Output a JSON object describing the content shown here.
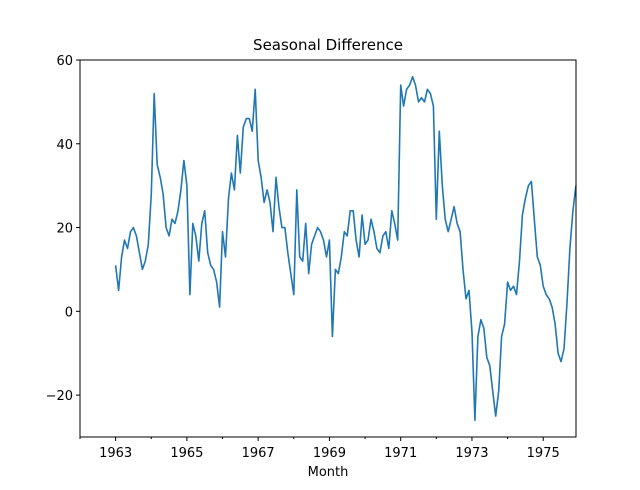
{
  "chart_data": {
    "type": "line",
    "title": "Seasonal Difference",
    "xlabel": "Month",
    "ylabel": "",
    "xlim": [
      1962.0,
      1975.92
    ],
    "ylim": [
      -30,
      60
    ],
    "grid": false,
    "legend": "none",
    "yticks": [
      -20,
      0,
      20,
      40,
      60
    ],
    "xticks": [
      1963,
      1965,
      1967,
      1969,
      1971,
      1973,
      1975
    ],
    "ytick_labels": [
      "−20",
      "0",
      "20",
      "40",
      "60"
    ],
    "xtick_labels": [
      "1963",
      "1965",
      "1967",
      "1969",
      "1971",
      "1973",
      "1975"
    ],
    "series": [
      {
        "color": "#1f77b4",
        "x": [
          1963.0,
          1963.083,
          1963.167,
          1963.25,
          1963.333,
          1963.417,
          1963.5,
          1963.583,
          1963.667,
          1963.75,
          1963.833,
          1963.917,
          1964.0,
          1964.083,
          1964.167,
          1964.25,
          1964.333,
          1964.417,
          1964.5,
          1964.583,
          1964.667,
          1964.75,
          1964.833,
          1964.917,
          1965.0,
          1965.083,
          1965.167,
          1965.25,
          1965.333,
          1965.417,
          1965.5,
          1965.583,
          1965.667,
          1965.75,
          1965.833,
          1965.917,
          1966.0,
          1966.083,
          1966.167,
          1966.25,
          1966.333,
          1966.417,
          1966.5,
          1966.583,
          1966.667,
          1966.75,
          1966.833,
          1966.917,
          1967.0,
          1967.083,
          1967.167,
          1967.25,
          1967.333,
          1967.417,
          1967.5,
          1967.583,
          1967.667,
          1967.75,
          1967.833,
          1967.917,
          1968.0,
          1968.083,
          1968.167,
          1968.25,
          1968.333,
          1968.417,
          1968.5,
          1968.583,
          1968.667,
          1968.75,
          1968.833,
          1968.917,
          1969.0,
          1969.083,
          1969.167,
          1969.25,
          1969.333,
          1969.417,
          1969.5,
          1969.583,
          1969.667,
          1969.75,
          1969.833,
          1969.917,
          1970.0,
          1970.083,
          1970.167,
          1970.25,
          1970.333,
          1970.417,
          1970.5,
          1970.583,
          1970.667,
          1970.75,
          1970.833,
          1970.917,
          1971.0,
          1971.083,
          1971.167,
          1971.25,
          1971.333,
          1971.417,
          1971.5,
          1971.583,
          1971.667,
          1971.75,
          1971.833,
          1971.917,
          1972.0,
          1972.083,
          1972.167,
          1972.25,
          1972.333,
          1972.417,
          1972.5,
          1972.583,
          1972.667,
          1972.75,
          1972.833,
          1972.917,
          1973.0,
          1973.083,
          1973.167,
          1973.25,
          1973.333,
          1973.417,
          1973.5,
          1973.583,
          1973.667,
          1973.75,
          1973.833,
          1973.917,
          1974.0,
          1974.083,
          1974.167,
          1974.25,
          1974.333,
          1974.417,
          1974.5,
          1974.583,
          1974.667,
          1974.75,
          1974.833,
          1974.917,
          1975.0,
          1975.083,
          1975.167,
          1975.25,
          1975.333,
          1975.417,
          1975.5,
          1975.583,
          1975.667,
          1975.75,
          1975.833,
          1975.917
        ],
        "y": [
          11,
          5,
          13,
          17,
          15,
          19,
          20,
          18,
          14,
          10,
          12,
          16,
          28,
          52,
          35,
          32,
          28,
          20,
          18,
          22,
          21,
          24,
          29,
          36,
          30,
          4,
          21,
          18,
          12,
          21,
          24,
          14,
          11,
          10,
          7,
          1,
          19,
          13,
          27,
          33,
          29,
          42,
          33,
          44,
          46,
          46,
          43,
          53,
          36,
          32,
          26,
          29,
          26,
          19,
          32,
          25,
          20,
          20,
          14,
          9,
          4,
          29,
          13,
          12,
          21,
          9,
          16,
          18,
          20,
          19,
          17,
          13,
          17,
          -6,
          10,
          9,
          13,
          19,
          18,
          24,
          24,
          17,
          13,
          23,
          16,
          17,
          22,
          19,
          15,
          14,
          18,
          19,
          15,
          24,
          21,
          17,
          54,
          49,
          53,
          54,
          56,
          54,
          50,
          51,
          50,
          53,
          52,
          49,
          22,
          43,
          30,
          22,
          19,
          22,
          25,
          21,
          19,
          10,
          3,
          5,
          -5,
          -26,
          -6,
          -2,
          -4,
          -11,
          -13,
          -19,
          -25,
          -19,
          -6,
          -3,
          7,
          5,
          6,
          4,
          12,
          23,
          27,
          30,
          31,
          22,
          13,
          11,
          6,
          4,
          3,
          1,
          -3,
          -10,
          -12,
          -9,
          2,
          15,
          24,
          30
        ]
      }
    ]
  }
}
